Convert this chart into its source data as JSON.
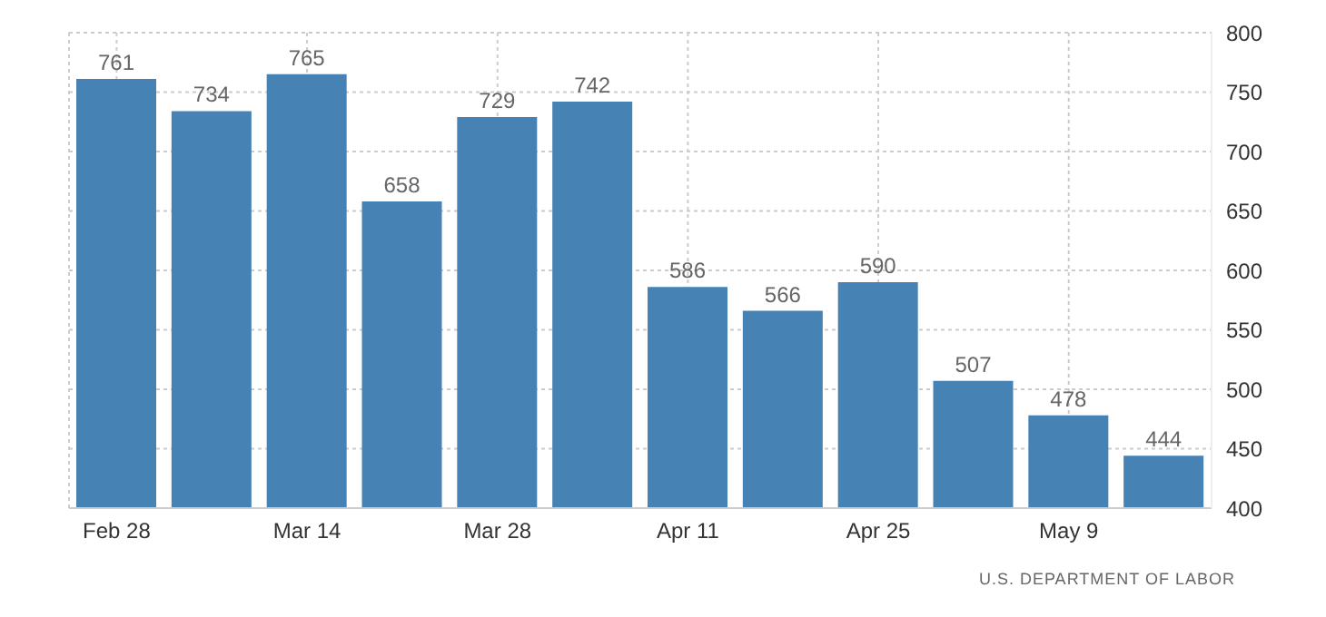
{
  "chart_data": {
    "type": "bar",
    "categories": [
      "Feb 28",
      null,
      "Mar 14",
      null,
      "Mar 28",
      null,
      "Apr 11",
      null,
      "Apr 25",
      null,
      "May 9",
      null
    ],
    "values": [
      761,
      734,
      765,
      658,
      729,
      742,
      586,
      566,
      590,
      507,
      478,
      444
    ],
    "color": "#4682b4",
    "ylim": [
      400,
      800
    ],
    "yticks": [
      400,
      450,
      500,
      550,
      600,
      650,
      700,
      750,
      800
    ],
    "grid": true,
    "data_labels": true,
    "annotations": [
      "U.S. DEPARTMENT OF LABOR"
    ]
  }
}
